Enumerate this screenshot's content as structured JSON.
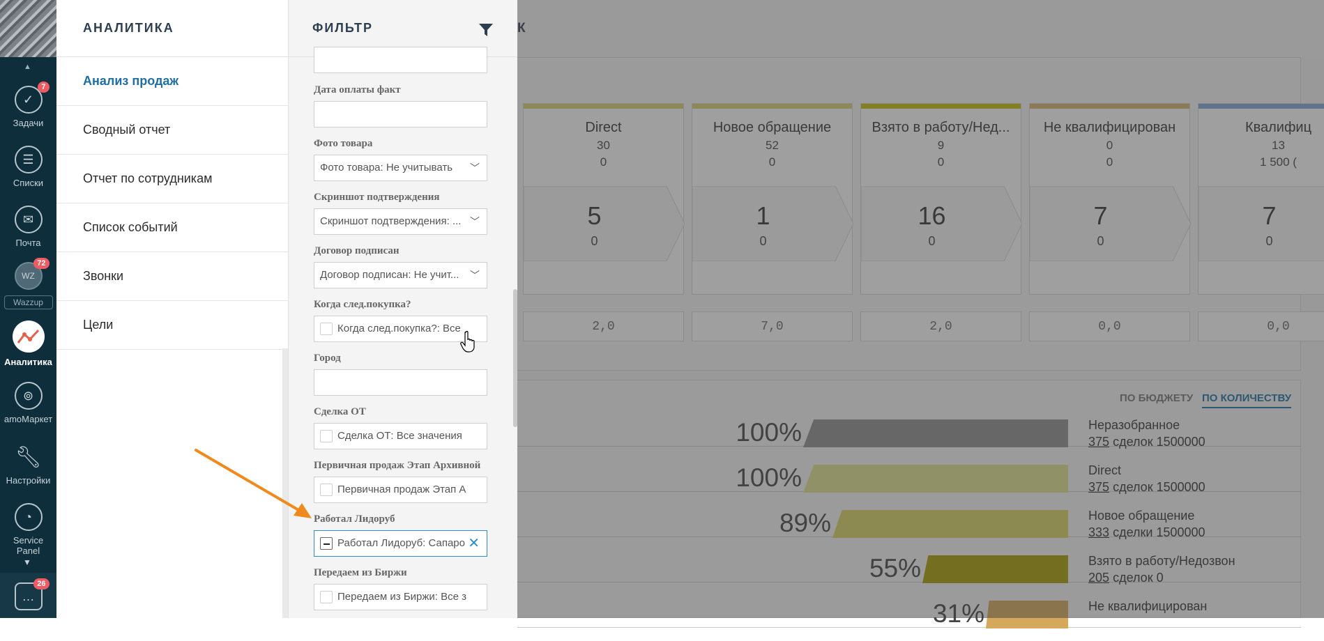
{
  "nav": {
    "items": [
      {
        "label": "Задачи",
        "badge": "7"
      },
      {
        "label": "Списки"
      },
      {
        "label": "Почта"
      },
      {
        "label": "Wazzup",
        "badge": "72",
        "avatar_text": "WZ"
      },
      {
        "label": "Аналитика"
      },
      {
        "label": "amoМаркет"
      },
      {
        "label": "Настройки"
      },
      {
        "label": "Service Panel"
      }
    ],
    "chat_badge": "26"
  },
  "menu": {
    "title": "АНАЛИТИКА",
    "items": [
      "Анализ продаж",
      "Сводный отчет",
      "Отчет по сотрудникам",
      "Список событий",
      "Звонки",
      "Цели"
    ]
  },
  "filter": {
    "title": "ФИЛЬТР",
    "fields": [
      {
        "label": "Дата оплаты факт"
      },
      {
        "label": "Фото товара",
        "value": "Фото товара: Не учитывать"
      },
      {
        "label": "Скриншот подтверждения",
        "value": "Скриншот подтверждения: ..."
      },
      {
        "label": "Договор подписан",
        "value": "Договор подписан: Не учит..."
      },
      {
        "label": "Когда след.покупка?",
        "value": "Когда след.покупка?: Все"
      },
      {
        "label": "Город"
      },
      {
        "label": "Сделка ОТ",
        "value": "Сделка ОТ: Все значения"
      },
      {
        "label": "Первичная продаж Этап Архивной",
        "value": "Первичная продаж Этап А"
      },
      {
        "label": "Работал Лидоруб",
        "value": "Работал Лидоруб: Сапаро"
      },
      {
        "label": "Передаем из Биржи",
        "value": "Передаем из Биржи: Все з"
      }
    ]
  },
  "background": {
    "title_fragment": "К",
    "stages": [
      {
        "name": "Direct",
        "v1": "30",
        "v2": "0",
        "big": "5",
        "small": "0",
        "avg": "2,0",
        "color": "#d6d36a"
      },
      {
        "name": "Новое обращение",
        "v1": "52",
        "v2": "0",
        "big": "1",
        "small": "0",
        "avg": "7,0",
        "color": "#d6d36a"
      },
      {
        "name": "Взято в работу/Нед...",
        "v1": "9",
        "v2": "0",
        "big": "16",
        "small": "0",
        "avg": "2,0",
        "color": "#c9bf00"
      },
      {
        "name": "Не квалифицирован",
        "v1": "0",
        "v2": "0",
        "big": "7",
        "small": "0",
        "avg": "0,0",
        "color": "#d6b46a"
      },
      {
        "name": "Квалифиц",
        "v1": "13",
        "v2": "1 500 (",
        "big": "7",
        "small": "0",
        "avg": "0,0",
        "color": "#7fa7d8"
      }
    ],
    "toggle": {
      "budget": "ПО БЮДЖЕТУ",
      "count": "ПО КОЛИЧЕСТВУ"
    },
    "funnel": [
      {
        "name": "Неразобранное",
        "pct": "100%",
        "count": "375",
        "tail": "сделок 1500000",
        "color": "#8e8e8e",
        "fraction": 1.0
      },
      {
        "name": "Direct",
        "pct": "100%",
        "count": "375",
        "tail": "сделок 1500000",
        "color": "#e3e38f",
        "fraction": 1.0
      },
      {
        "name": "Новое обращение",
        "pct": "89%",
        "count": "333",
        "tail": "сделки 1500000",
        "color": "#d9d463",
        "fraction": 0.89
      },
      {
        "name": "Взято в работу/Недозвон",
        "pct": "55%",
        "count": "205",
        "tail": "сделок 0",
        "color": "#a89e00",
        "fraction": 0.55
      },
      {
        "name": "Не квалифицирован",
        "pct": "31%",
        "color": "#d5a85c",
        "fraction": 0.31
      }
    ]
  },
  "colors": {
    "accent": "#1d6fa5",
    "nav_bg": "#0e2e3c",
    "annotation_arrow": "#f08a1c"
  }
}
